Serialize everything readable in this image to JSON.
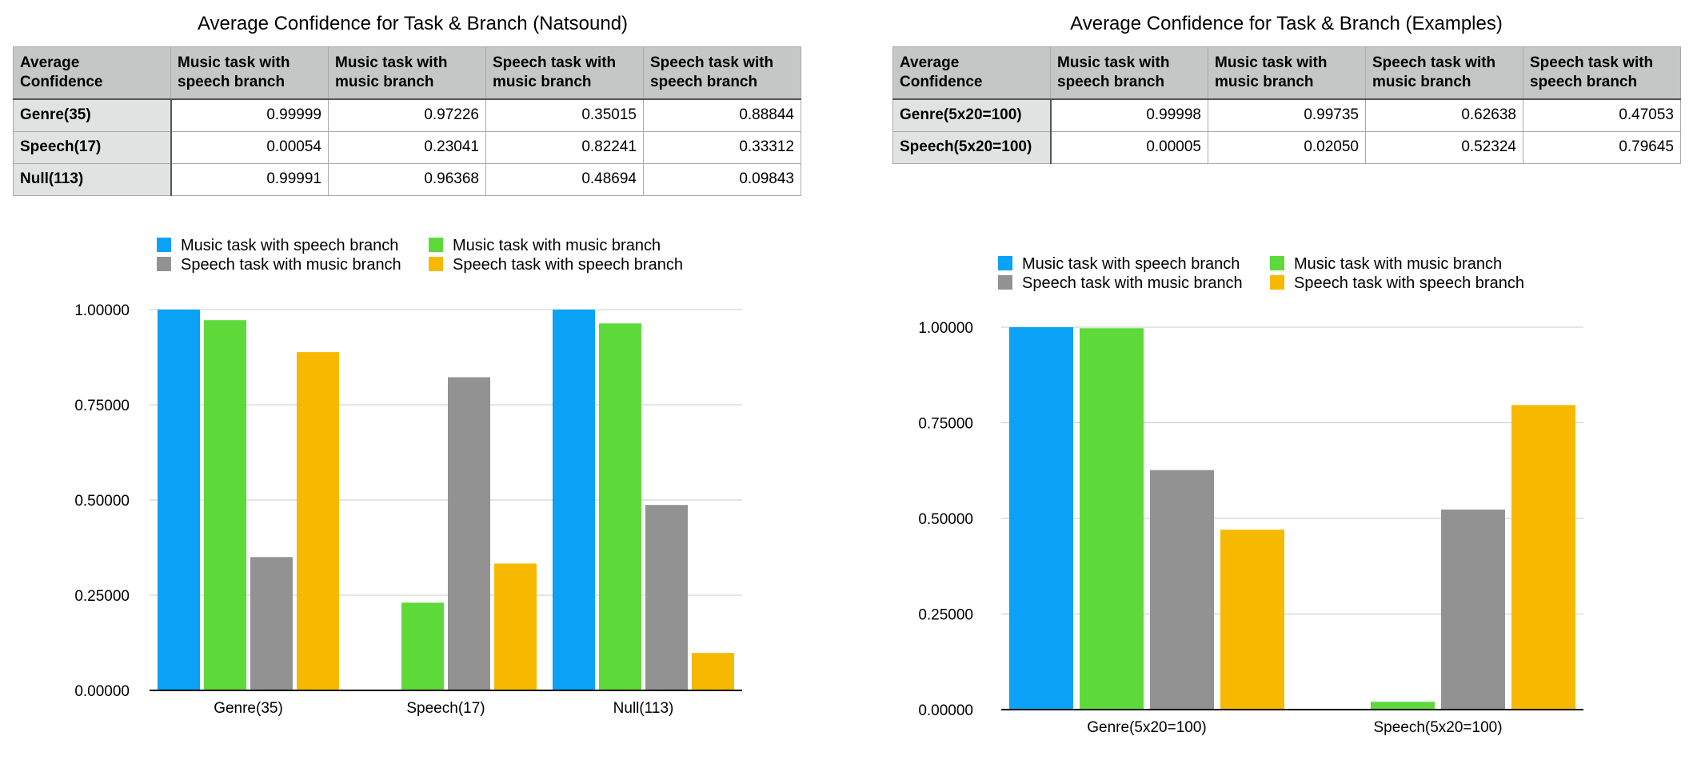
{
  "left": {
    "table_title": "Average Confidence for Task & Branch (Natsound)",
    "corner_header": "Average Confidence",
    "column_headers": [
      "Music task with speech branch",
      "Music task with music branch",
      "Speech task with music branch",
      "Speech task with speech branch"
    ],
    "rows": [
      {
        "label": "Genre(35)",
        "values": [
          "0.99999",
          "0.97226",
          "0.35015",
          "0.88844"
        ]
      },
      {
        "label": "Speech(17)",
        "values": [
          "0.00054",
          "0.23041",
          "0.82241",
          "0.33312"
        ]
      },
      {
        "label": "Null(113)",
        "values": [
          "0.99991",
          "0.96368",
          "0.48694",
          "0.09843"
        ]
      }
    ]
  },
  "right": {
    "table_title": "Average Confidence for Task & Branch (Examples)",
    "corner_header": "Average Confidence",
    "column_headers": [
      "Music task with speech branch",
      "Music task with music branch",
      "Speech task with music branch",
      "Speech task with speech branch"
    ],
    "rows": [
      {
        "label": "Genre(5x20=100)",
        "values": [
          "0.99998",
          "0.99735",
          "0.62638",
          "0.47053"
        ]
      },
      {
        "label": "Speech(5x20=100)",
        "values": [
          "0.00005",
          "0.02050",
          "0.52324",
          "0.79645"
        ]
      }
    ]
  },
  "colors": {
    "music_speech": "#0aa2f7",
    "music_music": "#5ed93a",
    "speech_music": "#929292",
    "speech_speech": "#f7b900"
  },
  "chart_data": [
    {
      "type": "bar",
      "title": "",
      "categories": [
        "Genre(35)",
        "Speech(17)",
        "Null(113)"
      ],
      "series": [
        {
          "name": "Music task with speech branch",
          "values": [
            0.99999,
            0.00054,
            0.99991
          ]
        },
        {
          "name": "Music task with music branch",
          "values": [
            0.97226,
            0.23041,
            0.96368
          ]
        },
        {
          "name": "Speech task with music branch",
          "values": [
            0.35015,
            0.82241,
            0.48694
          ]
        },
        {
          "name": "Speech task with speech branch",
          "values": [
            0.88844,
            0.33312,
            0.09843
          ]
        }
      ],
      "yticks": [
        "0.00000",
        "0.25000",
        "0.50000",
        "0.75000",
        "1.00000"
      ],
      "ylim": [
        0,
        1
      ],
      "grid": true,
      "legend": "top"
    },
    {
      "type": "bar",
      "title": "",
      "categories": [
        "Genre(5x20=100)",
        "Speech(5x20=100)"
      ],
      "series": [
        {
          "name": "Music task with speech branch",
          "values": [
            0.99998,
            5e-05
          ]
        },
        {
          "name": "Music task with music branch",
          "values": [
            0.99735,
            0.0205
          ]
        },
        {
          "name": "Speech task with music branch",
          "values": [
            0.62638,
            0.52324
          ]
        },
        {
          "name": "Speech task with speech branch",
          "values": [
            0.47053,
            0.79645
          ]
        }
      ],
      "yticks": [
        "0.00000",
        "0.25000",
        "0.50000",
        "0.75000",
        "1.00000"
      ],
      "ylim": [
        0,
        1
      ],
      "grid": true,
      "legend": "top"
    }
  ]
}
